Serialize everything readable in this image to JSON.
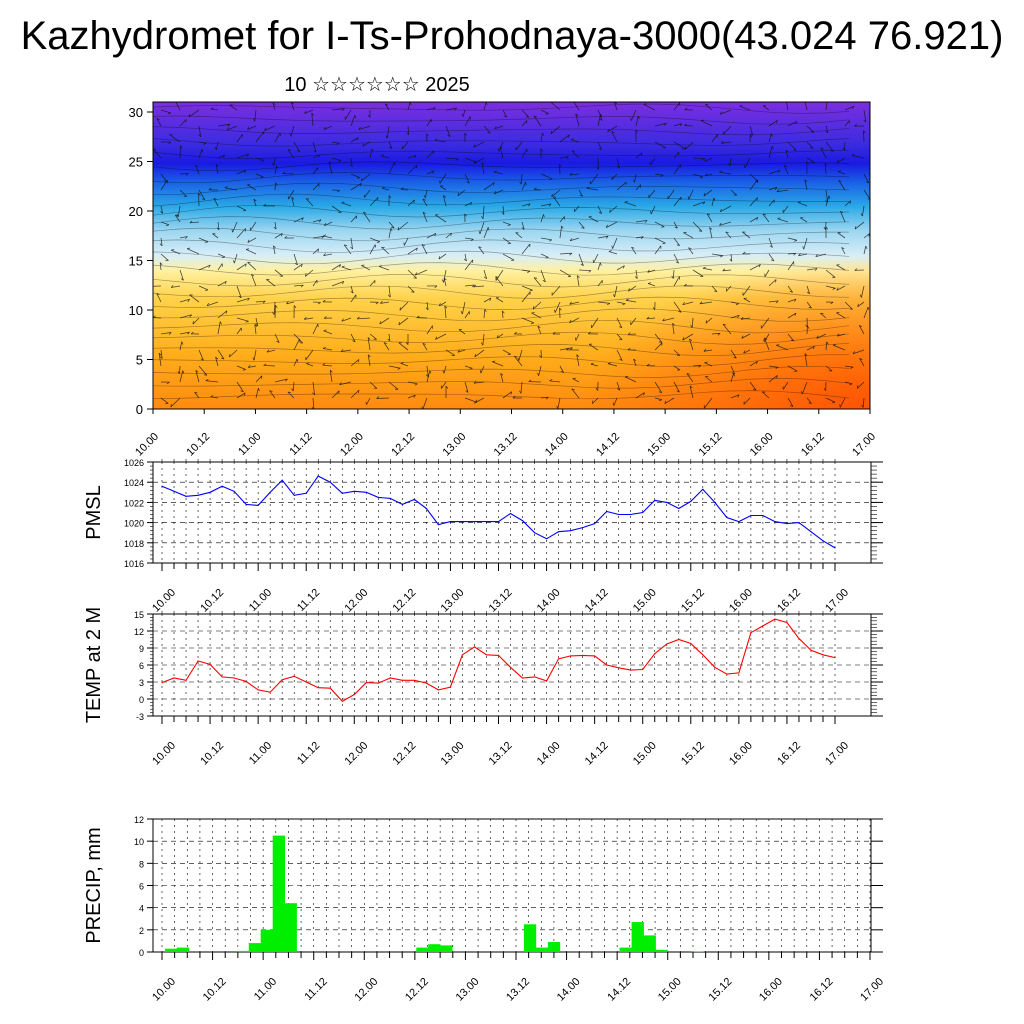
{
  "title": "Kazhydromet for I-Ts-Prohodnaya-3000(43.024 76.921)",
  "subtitle": "10 ☆☆☆☆☆☆ 2025",
  "time_labels": [
    "10.00",
    "10.12",
    "11.00",
    "11.12",
    "12.00",
    "12.12",
    "13.00",
    "13.12",
    "14.00",
    "14.12",
    "15.00",
    "15.12",
    "16.00",
    "16.12",
    "17.00"
  ],
  "chart_data": [
    {
      "type": "heatmap",
      "title": "",
      "xlabel": "",
      "ylabel": "",
      "x_tick_labels": [
        "10.00",
        "10.12",
        "11.00",
        "11.12",
        "12.00",
        "12.12",
        "13.00",
        "13.12",
        "14.00",
        "14.12",
        "15.00",
        "15.12",
        "16.00",
        "16.12",
        "17.00"
      ],
      "y_ticks": [
        0,
        5,
        10,
        15,
        20,
        25,
        30
      ],
      "ylim": [
        0,
        30
      ],
      "overlay": "wind vectors",
      "colors": {
        "low": "#ff6a00",
        "mid_warm": "#ffd24a",
        "mid_cool": "#bfe4f5",
        "cool": "#29a9e6",
        "cold": "#1a1ae0",
        "top": "#7b2fe0"
      }
    },
    {
      "type": "line",
      "title": "",
      "xlabel": "",
      "ylabel": "PMSL",
      "ylim": [
        1016,
        1026
      ],
      "y_ticks": [
        1016,
        1018,
        1020,
        1022,
        1024,
        1026
      ],
      "x_tick_labels": [
        "10.00",
        "10.12",
        "11.00",
        "11.12",
        "12.00",
        "12.12",
        "13.00",
        "13.12",
        "14.00",
        "14.12",
        "15.00",
        "15.12",
        "16.00",
        "16.12",
        "17.00"
      ],
      "grid": true,
      "color": "#0000ff",
      "series": [
        {
          "values": [
            1023.6,
            1023.1,
            1022.6,
            1022.7,
            1023.0,
            1023.6,
            1023.1,
            1021.8,
            1021.7,
            1023.0,
            1024.2,
            1022.7,
            1022.9,
            1024.6,
            1024.0,
            1022.9,
            1023.1,
            1023.0,
            1022.5,
            1022.4,
            1021.8,
            1022.3,
            1021.4,
            1019.8,
            1020.1,
            1020.1,
            1020.1,
            1020.1,
            1020.1,
            1020.9,
            1020.2,
            1019.0,
            1018.4,
            1019.1,
            1019.2,
            1019.5,
            1019.9,
            1021.1,
            1020.8,
            1020.8,
            1021.0,
            1022.2,
            1022.0,
            1021.4,
            1022.1,
            1023.3,
            1022.0,
            1020.5,
            1020.1,
            1020.7,
            1020.7,
            1020.1,
            1019.9,
            1020.0,
            1019.1,
            1018.2,
            1017.5
          ]
        }
      ]
    },
    {
      "type": "line",
      "title": "",
      "xlabel": "",
      "ylabel": "TEMP at 2 M",
      "ylim": [
        -3,
        15
      ],
      "y_ticks": [
        -3,
        0,
        3,
        6,
        9,
        12,
        15
      ],
      "x_tick_labels": [
        "10.00",
        "10.12",
        "11.00",
        "11.12",
        "12.00",
        "12.12",
        "13.00",
        "13.12",
        "14.00",
        "14.12",
        "15.00",
        "15.12",
        "16.00",
        "16.12",
        "17.00"
      ],
      "grid": true,
      "color": "#ff0000",
      "series": [
        {
          "values": [
            2.9,
            3.7,
            3.3,
            6.7,
            6.1,
            3.9,
            3.7,
            3.1,
            1.6,
            1.2,
            3.4,
            4.0,
            3.0,
            2.0,
            1.9,
            -0.4,
            0.8,
            2.9,
            2.8,
            3.7,
            3.3,
            3.3,
            2.8,
            1.6,
            2.1,
            7.8,
            9.2,
            7.8,
            7.7,
            5.6,
            3.7,
            3.9,
            3.2,
            7.1,
            7.6,
            7.7,
            7.6,
            6.0,
            5.5,
            5.1,
            5.2,
            8.0,
            9.7,
            10.5,
            9.8,
            7.8,
            5.6,
            4.4,
            4.6,
            11.7,
            12.9,
            14.1,
            13.5,
            10.7,
            8.6,
            7.8,
            7.3
          ]
        }
      ]
    },
    {
      "type": "bar",
      "title": "",
      "xlabel": "",
      "ylabel": "PRECIP, mm",
      "ylim": [
        0,
        12
      ],
      "y_ticks": [
        0,
        2,
        4,
        6,
        8,
        10,
        12
      ],
      "x_tick_labels": [
        "10.00",
        "10.12",
        "11.00",
        "11.12",
        "12.00",
        "12.12",
        "13.00",
        "13.12",
        "14.00",
        "14.12",
        "15.00",
        "15.12",
        "16.00",
        "16.12",
        "17.00"
      ],
      "grid": true,
      "color": "#00ee00",
      "series": [
        {
          "values": [
            0.3,
            0.4,
            0,
            0,
            0,
            0,
            0.1,
            0.8,
            2.0,
            10.5,
            4.4,
            0,
            0,
            0,
            0,
            0,
            0,
            0,
            0,
            0,
            0,
            0.4,
            0.7,
            0.6,
            0,
            0,
            0,
            0,
            0,
            0,
            2.5,
            0.4,
            0.9,
            0,
            0,
            0,
            0,
            0,
            0.4,
            2.7,
            1.5,
            0.2,
            0,
            0,
            0.05,
            0,
            0,
            0,
            0,
            0,
            0,
            0,
            0,
            0,
            0,
            0,
            0
          ]
        }
      ]
    }
  ]
}
